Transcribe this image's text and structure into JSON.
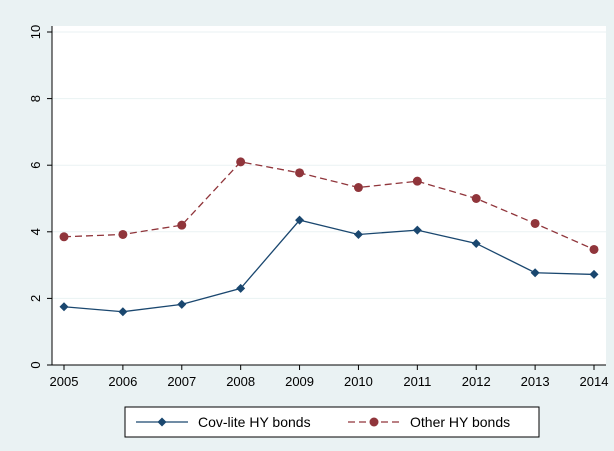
{
  "chart_data": {
    "type": "line",
    "title": "",
    "xlabel": "",
    "ylabel": "",
    "x": [
      2005,
      2006,
      2007,
      2008,
      2009,
      2010,
      2011,
      2012,
      2013,
      2014
    ],
    "ylim": [
      0,
      10
    ],
    "yticks": [
      0,
      2,
      4,
      6,
      8,
      10
    ],
    "grid": true,
    "legend_position": "bottom",
    "series": [
      {
        "name": "Cov-lite HY bonds",
        "values": [
          1.75,
          1.6,
          1.82,
          2.3,
          4.35,
          3.92,
          4.05,
          3.65,
          2.77,
          2.72
        ],
        "color": "#1a476f",
        "line_style": "solid",
        "marker": "diamond"
      },
      {
        "name": "Other HY bonds",
        "values": [
          3.85,
          3.92,
          4.2,
          6.1,
          5.77,
          5.33,
          5.52,
          5.0,
          4.25,
          3.47
        ],
        "color": "#90353b",
        "line_style": "dashed",
        "marker": "circle"
      }
    ]
  }
}
